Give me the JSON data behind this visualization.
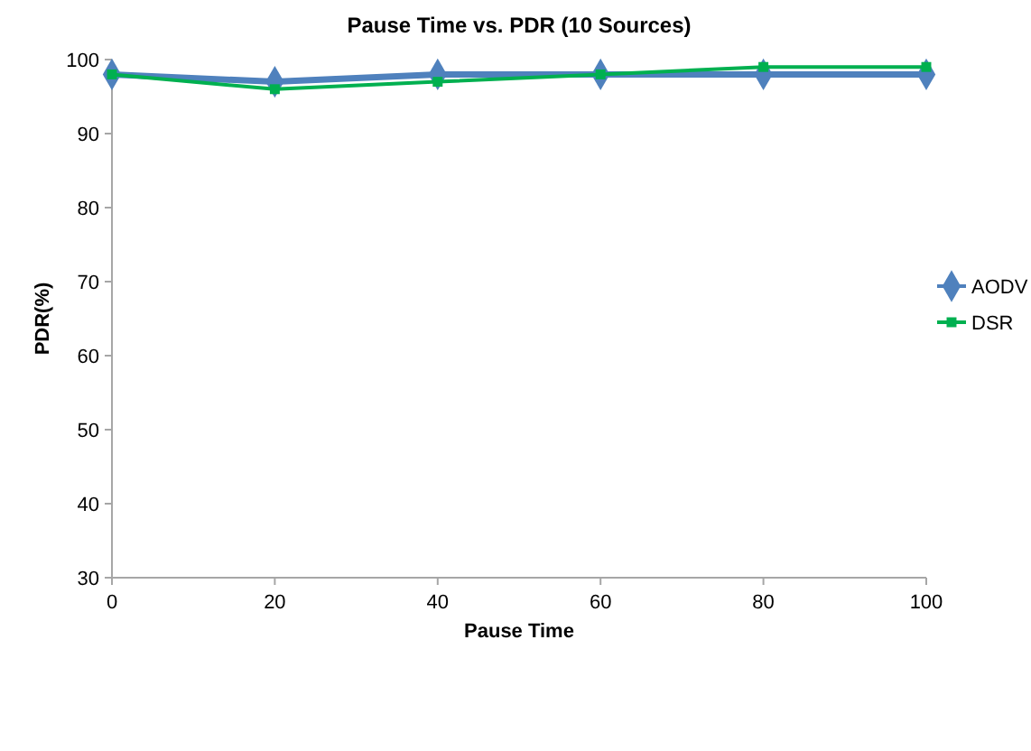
{
  "chart_data": {
    "type": "line",
    "title": "Pause Time vs. PDR (10 Sources)",
    "xlabel": "Pause Time",
    "ylabel": "PDR(%)",
    "x": [
      0,
      20,
      40,
      60,
      80,
      100
    ],
    "xlim": [
      0,
      100
    ],
    "xticks": [
      0,
      20,
      40,
      60,
      80,
      100
    ],
    "ylim": [
      30,
      100
    ],
    "yticks": [
      30,
      40,
      50,
      60,
      70,
      80,
      90,
      100
    ],
    "grid": false,
    "legend": "right",
    "series": [
      {
        "name": "AODV",
        "color": "#4f81bd",
        "marker": "diamond",
        "values": [
          98,
          97,
          98,
          98,
          98,
          98
        ]
      },
      {
        "name": "DSR",
        "color": "#00b050",
        "marker": "square",
        "values": [
          98,
          96,
          97,
          98,
          99,
          99
        ]
      }
    ]
  }
}
